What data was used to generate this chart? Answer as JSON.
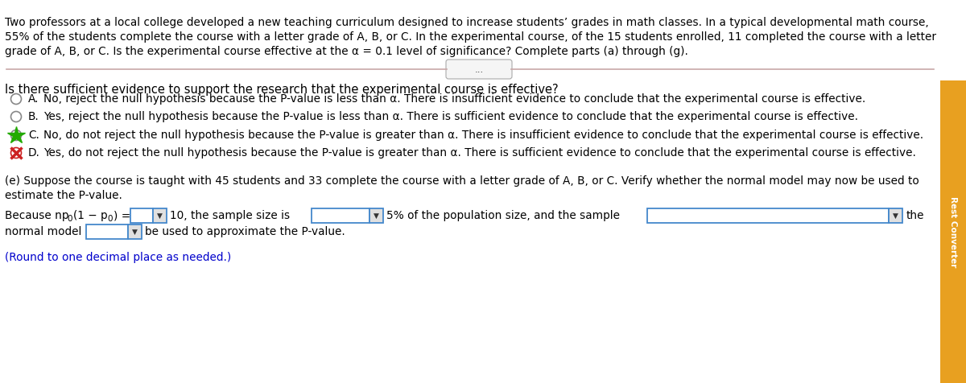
{
  "bg_color": "#ffffff",
  "header_line1": "Two professors at a local college developed a new teaching curriculum designed to increase students’ grades in math classes. In a typical developmental math course,",
  "header_line2": "55% of the students complete the course with a letter grade of A, B, or C. In the experimental course, of the 15 students enrolled, 11 completed the course with a letter",
  "header_line3": "grade of A, B, or C. Is the experimental course effective at the α = 0.1 level of significance? Complete parts (a) through (g).",
  "question": "Is there sufficient evidence to support the research that the experimental course is effective?",
  "options": [
    {
      "label": "A.",
      "text": "No, reject the null hypothesis because the P-value is less than α. There is insufficient evidence to conclude that the experimental course is effective.",
      "marker": "circle",
      "selected": false
    },
    {
      "label": "B.",
      "text": "Yes, reject the null hypothesis because the P-value is less than α. There is sufficient evidence to conclude that the experimental course is effective.",
      "marker": "circle",
      "selected": false
    },
    {
      "label": "C.",
      "text": "No, do not reject the null hypothesis because the P-value is greater than α. There is insufficient evidence to conclude that the experimental course is effective.",
      "marker": "star",
      "selected": true
    },
    {
      "label": "D.",
      "text": "Yes, do not reject the null hypothesis because the P-value is greater than α. There is sufficient evidence to conclude that the experimental course is effective.",
      "marker": "cross",
      "selected": true
    }
  ],
  "part_e_line1": "(e) Suppose the course is taught with 45 students and 33 complete the course with a letter grade of A, B, or C. Verify whether the normal model may now be used to",
  "part_e_line2": "estimate the P-value.",
  "round_note": "(Round to one decimal place as needed.)",
  "sidebar_color": "#E8A020",
  "sidebar_text": "Rest Converter",
  "round_note_color": "#0000CC",
  "divider_color": "#c8a8a8",
  "box_border_color": "#4488cc",
  "box_bg_color": "#ffffff",
  "box_dropdown_color": "#e0e0e0"
}
